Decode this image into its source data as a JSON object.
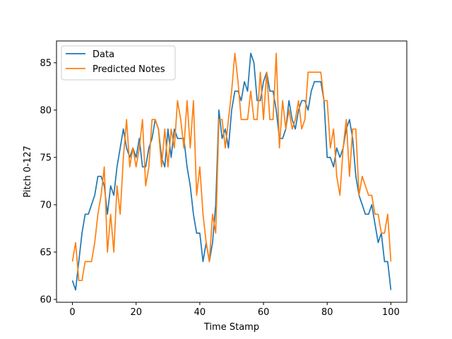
{
  "chart_data": {
    "type": "line",
    "title": "",
    "xlabel": "Time Stamp",
    "ylabel": "Pitch 0-127",
    "xlim": [
      -5,
      105
    ],
    "ylim": [
      59.7,
      87.3
    ],
    "xticks": [
      0,
      20,
      40,
      60,
      80,
      100
    ],
    "yticks": [
      60,
      65,
      70,
      75,
      80,
      85
    ],
    "grid": false,
    "legend_position": "top-left",
    "x": [
      0,
      1,
      2,
      3,
      4,
      5,
      6,
      7,
      8,
      9,
      10,
      11,
      12,
      13,
      14,
      15,
      16,
      17,
      18,
      19,
      20,
      21,
      22,
      23,
      24,
      25,
      26,
      27,
      28,
      29,
      30,
      31,
      32,
      33,
      34,
      35,
      36,
      37,
      38,
      39,
      40,
      41,
      42,
      43,
      44,
      45,
      46,
      47,
      48,
      49,
      50,
      51,
      52,
      53,
      54,
      55,
      56,
      57,
      58,
      59,
      60,
      61,
      62,
      63,
      64,
      65,
      66,
      67,
      68,
      69,
      70,
      71,
      72,
      73,
      74,
      75,
      76,
      77,
      78,
      79,
      80,
      81,
      82,
      83,
      84,
      85,
      86,
      87,
      88,
      89,
      90,
      91,
      92,
      93,
      94,
      95,
      96,
      97,
      98,
      99,
      100
    ],
    "series": [
      {
        "name": "Data",
        "color": "#1f77b4",
        "values": [
          62,
          61,
          64,
          67,
          69,
          69,
          70,
          71,
          73,
          73,
          72,
          69,
          72,
          71,
          74,
          76,
          78,
          76,
          75,
          76,
          75,
          77,
          74,
          74,
          76,
          77,
          79,
          78,
          75,
          74,
          78,
          75,
          78,
          77,
          77,
          77,
          74,
          72,
          69,
          67,
          67,
          64,
          66,
          64,
          66,
          70,
          80,
          77,
          78,
          76,
          80,
          82,
          82,
          81,
          83,
          82,
          86,
          85,
          81,
          81,
          83,
          84,
          82,
          82,
          80,
          77,
          77,
          78,
          81,
          79,
          78,
          80,
          81,
          81,
          80,
          82,
          83,
          83,
          83,
          81,
          75,
          75,
          74,
          76,
          75,
          76,
          78,
          79,
          77,
          73,
          71,
          70,
          69,
          69,
          70,
          68,
          66,
          67,
          64,
          64,
          61
        ]
      },
      {
        "name": "Predicted Notes",
        "color": "#ff7f0e",
        "values": [
          64,
          66,
          62,
          62,
          64,
          64,
          64,
          66,
          69,
          71,
          74,
          65,
          69,
          65,
          72,
          69,
          75,
          79,
          74,
          76,
          74,
          76,
          79,
          72,
          74,
          79,
          79,
          78,
          74,
          78,
          74,
          78,
          76,
          81,
          79,
          76,
          81,
          76,
          81,
          71,
          74,
          69,
          66,
          64,
          69,
          67,
          79,
          79,
          76,
          79,
          82,
          86,
          83,
          79,
          79,
          79,
          82,
          79,
          79,
          84,
          79,
          84,
          79,
          79,
          86,
          76,
          81,
          78,
          80,
          78,
          79,
          81,
          78,
          79,
          84,
          84,
          84,
          84,
          84,
          81,
          81,
          76,
          78,
          73,
          71,
          76,
          79,
          73,
          78,
          78,
          71,
          73,
          72,
          71,
          71,
          69,
          69,
          67,
          67,
          69,
          64
        ]
      }
    ]
  }
}
